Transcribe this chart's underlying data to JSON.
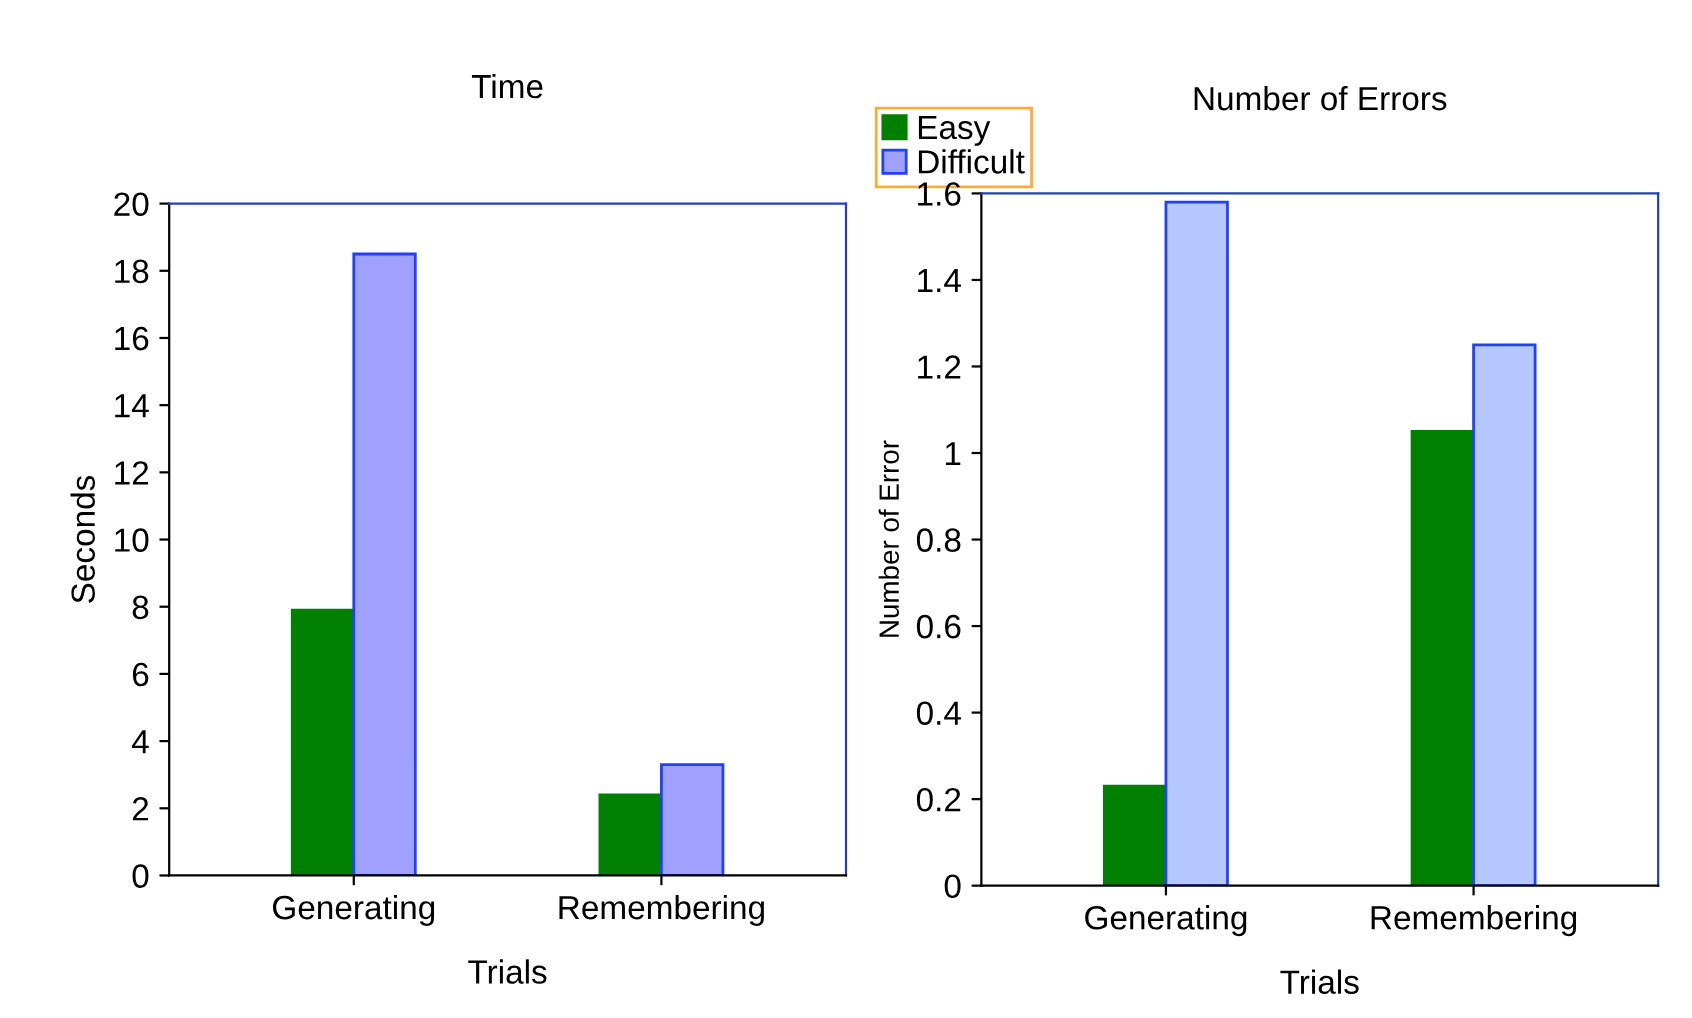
{
  "chart_data": [
    {
      "type": "bar",
      "title": "Time",
      "xlabel": "Trials",
      "ylabel": "Seconds",
      "categories": [
        "Generating",
        "Remembering"
      ],
      "ylim": [
        0,
        20
      ],
      "yticks": [
        0,
        2,
        4,
        6,
        8,
        10,
        12,
        14,
        16,
        18,
        20
      ],
      "grid": false,
      "legend": "top right",
      "series": [
        {
          "name": "Easy",
          "color": "#008000",
          "values": [
            7.9,
            2.4
          ]
        },
        {
          "name": "Difficult",
          "color": "#a0a0ff",
          "values": [
            18.5,
            3.3
          ]
        }
      ]
    },
    {
      "type": "bar",
      "title": "Number of Errors",
      "xlabel": "Trials",
      "ylabel": "Number of Error",
      "categories": [
        "Generating",
        "Remembering"
      ],
      "ylim": [
        0,
        1.6
      ],
      "yticks": [
        0,
        0.2,
        0.4,
        0.6,
        0.8,
        1,
        1.2,
        1.4,
        1.6
      ],
      "grid": false,
      "series": [
        {
          "color": "#008000",
          "values": [
            0.23,
            1.05
          ]
        },
        {
          "color": "#b4c8ff",
          "values": [
            1.58,
            1.25
          ]
        }
      ]
    }
  ]
}
